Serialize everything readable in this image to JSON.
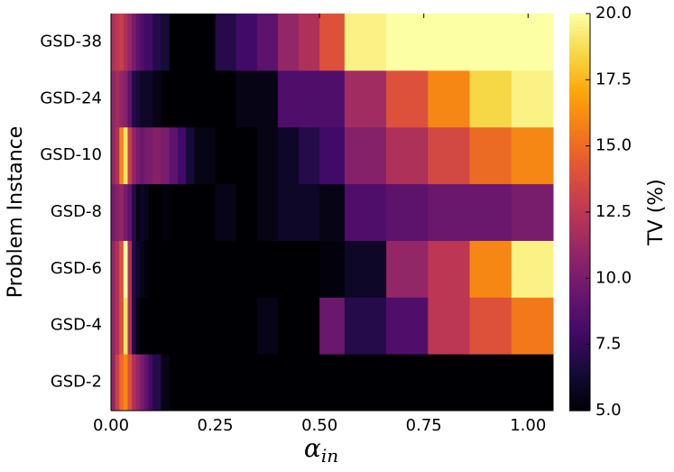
{
  "chart_data": {
    "type": "heatmap",
    "xlabel": {
      "symbol": "α",
      "subscript": "in"
    },
    "ylabel": "Problem Instance",
    "colorbar_label": "TV (%)",
    "colormap": "inferno",
    "categories": [
      "GSD-2",
      "GSD-4",
      "GSD-6",
      "GSD-8",
      "GSD-10",
      "GSD-24",
      "GSD-38"
    ],
    "xbins": [
      0,
      0.01,
      0.02,
      0.03,
      0.04,
      0.05,
      0.06,
      0.07,
      0.08,
      0.09,
      0.1,
      0.12,
      0.14,
      0.16,
      0.18,
      0.2,
      0.25,
      0.3,
      0.35,
      0.4,
      0.45,
      0.5,
      0.56,
      0.66,
      0.76,
      0.86,
      0.96,
      1.06
    ],
    "z": [
      [
        11,
        13,
        15,
        16,
        14,
        12,
        11,
        10,
        9,
        8,
        7,
        5.5,
        5,
        5,
        5,
        5,
        5,
        5,
        5,
        5,
        5,
        5,
        5,
        5,
        5,
        5,
        5
      ],
      [
        11,
        12,
        14,
        19,
        12,
        7,
        5.5,
        5,
        5,
        5,
        5,
        5,
        5,
        5,
        5,
        5,
        5,
        5,
        5.5,
        5,
        5,
        9.5,
        7,
        8.5,
        12.5,
        14,
        15.5
      ],
      [
        11,
        12,
        14,
        20,
        12,
        7,
        6,
        5.5,
        5.2,
        5,
        5,
        5,
        5,
        5,
        5,
        5,
        5,
        5,
        5,
        5,
        5,
        5.2,
        6,
        11,
        12.5,
        16,
        19.5
      ],
      [
        10,
        10.5,
        11,
        10,
        9,
        7,
        5.5,
        6,
        5.5,
        5,
        5,
        5.2,
        5,
        5,
        5,
        5,
        5.5,
        5,
        5.5,
        6,
        6,
        5.5,
        8.5,
        9,
        9.5,
        9.5,
        10
      ],
      [
        11,
        12,
        16,
        19,
        13,
        11,
        10,
        9.5,
        10,
        10,
        10.5,
        10,
        9,
        8,
        6.5,
        5.5,
        5,
        5,
        5.5,
        6,
        7,
        8,
        10.5,
        12,
        13.5,
        15,
        16
      ],
      [
        11,
        11.5,
        11,
        10.5,
        9,
        7,
        6.5,
        6,
        6,
        6,
        5.5,
        5,
        5,
        5,
        5,
        5,
        5,
        5.5,
        5.5,
        8.5,
        8.5,
        8.5,
        11.5,
        14,
        16,
        18.5,
        19.5
      ],
      [
        12,
        12.5,
        13,
        12,
        11,
        10,
        9,
        8.5,
        8,
        8,
        7,
        6.5,
        5,
        5,
        5,
        5,
        7,
        8,
        9,
        11,
        12,
        14,
        19.5,
        20,
        20,
        20,
        20
      ]
    ],
    "xlim": [
      0,
      1.06
    ],
    "xticks": [
      {
        "value": 0,
        "label": "0.00"
      },
      {
        "value": 0.25,
        "label": "0.25"
      },
      {
        "value": 0.5,
        "label": "0.50"
      },
      {
        "value": 0.75,
        "label": "0.75"
      },
      {
        "value": 1,
        "label": "1.00"
      }
    ],
    "clim": [
      5,
      20
    ],
    "cticks": [
      {
        "value": 5,
        "label": "5.0"
      },
      {
        "value": 7.5,
        "label": "7.5"
      },
      {
        "value": 10,
        "label": "10.0"
      },
      {
        "value": 12.5,
        "label": "12.5"
      },
      {
        "value": 15,
        "label": "15.0"
      },
      {
        "value": 17.5,
        "label": "17.5"
      },
      {
        "value": 20,
        "label": "20.0"
      }
    ]
  }
}
